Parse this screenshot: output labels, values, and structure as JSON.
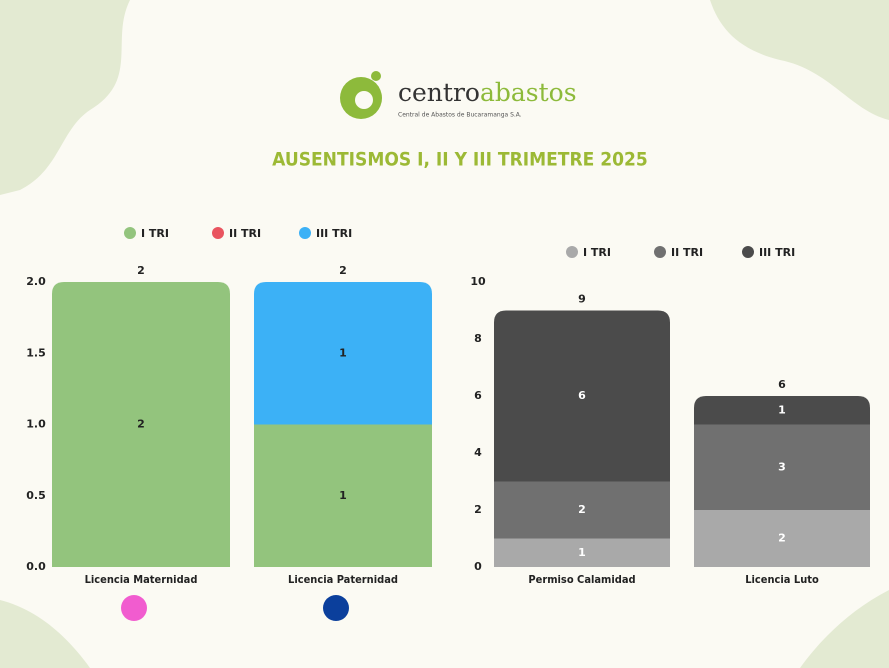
{
  "header": {
    "logo_main": "centro",
    "logo_accent": "abastos",
    "logo_sub": "Central de Abastos de Bucaramanga S.A.",
    "title": "AUSENTISMOS I,  II Y III TRIMETRE 2025"
  },
  "chart_data": [
    {
      "type": "stacked-bar",
      "categories": [
        "Licencia Maternidad",
        "Licencia Paternidad"
      ],
      "category_markers": [
        "#f15ccf",
        "#0b3f9c"
      ],
      "series": [
        {
          "name": "I TRI",
          "color": "#93c47d",
          "values": [
            2,
            1
          ]
        },
        {
          "name": "II TRI",
          "color": "#e9545f",
          "values": [
            0,
            0
          ]
        },
        {
          "name": "III TRI",
          "color": "#3cb1f6",
          "values": [
            0,
            1
          ]
        }
      ],
      "totals": [
        2,
        2
      ],
      "label_color": "#222222",
      "ylim": [
        0,
        2
      ],
      "yticks": [
        {
          "value": 0,
          "label": "0.0"
        },
        0.5,
        {
          "value": 1,
          "label": "1.0"
        },
        1.5,
        {
          "value": 2,
          "label": "2.0"
        }
      ]
    },
    {
      "type": "stacked-bar",
      "categories": [
        "Permiso Calamidad",
        "Licencia Luto"
      ],
      "series": [
        {
          "name": "I TRI",
          "color": "#a9a9a9",
          "values": [
            1,
            2
          ]
        },
        {
          "name": "II TRI",
          "color": "#707070",
          "values": [
            2,
            3
          ]
        },
        {
          "name": "III TRI",
          "color": "#4b4b4b",
          "values": [
            6,
            1
          ]
        }
      ],
      "totals": [
        9,
        6
      ],
      "label_color": "#ffffff",
      "ylim": [
        0,
        10
      ],
      "yticks": [
        0,
        2,
        4,
        6,
        8,
        10
      ]
    }
  ]
}
